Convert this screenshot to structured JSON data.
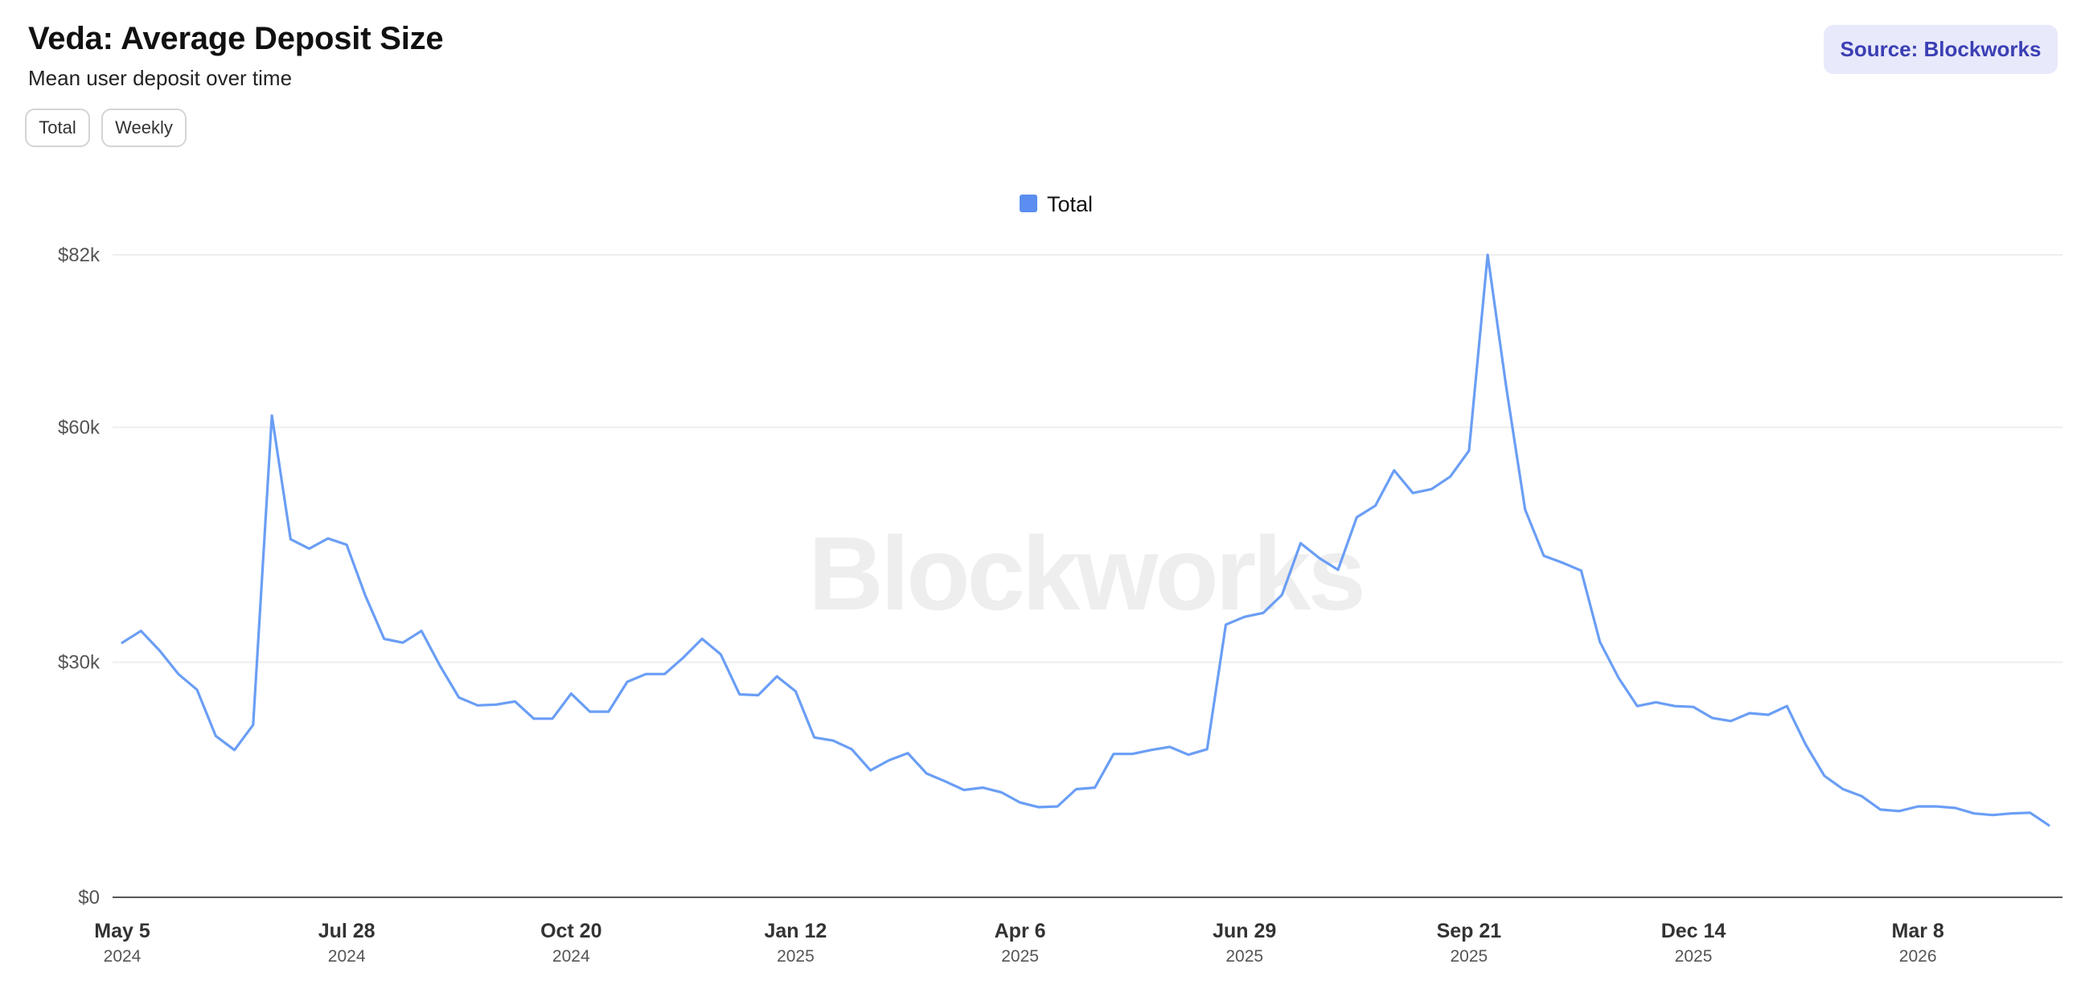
{
  "header": {
    "title": "Veda: Average Deposit Size",
    "subtitle": "Mean user deposit over time",
    "source_label": "Source: Blockworks"
  },
  "toggles": {
    "total_label": "Total",
    "weekly_label": "Weekly"
  },
  "watermark": "Blockworks",
  "colors": {
    "series": "#6a9ef5",
    "legend_swatch": "#5b8ef0",
    "source_badge_bg": "#e8e9fb",
    "source_badge_text": "#3b3fb3",
    "grid": "#eeeeee"
  },
  "chart_data": {
    "type": "line",
    "title": "Veda: Average Deposit Size",
    "subtitle": "Mean user deposit over time",
    "legend": {
      "position": "top-center",
      "entries": [
        "Total"
      ]
    },
    "grid": true,
    "ylim": [
      0,
      82000
    ],
    "y_ticks": [
      {
        "value": 0,
        "label": "$0"
      },
      {
        "value": 30000,
        "label": "$30k"
      },
      {
        "value": 60000,
        "label": "$60k"
      },
      {
        "value": 82000,
        "label": "$82k"
      }
    ],
    "x_range": [
      "2024-05-05",
      "2026-04-26"
    ],
    "x_ticks": [
      {
        "date": "2024-05-05",
        "label": "May 5",
        "year": "2024"
      },
      {
        "date": "2024-07-28",
        "label": "Jul 28",
        "year": "2024"
      },
      {
        "date": "2024-10-20",
        "label": "Oct 20",
        "year": "2024"
      },
      {
        "date": "2025-01-12",
        "label": "Jan 12",
        "year": "2025"
      },
      {
        "date": "2025-04-06",
        "label": "Apr 6",
        "year": "2025"
      },
      {
        "date": "2025-06-29",
        "label": "Jun 29",
        "year": "2025"
      },
      {
        "date": "2025-09-21",
        "label": "Sep 21",
        "year": "2025"
      },
      {
        "date": "2025-12-14",
        "label": "Dec 14",
        "year": "2025"
      },
      {
        "date": "2026-03-08",
        "label": "Mar 8",
        "year": "2026"
      }
    ],
    "x": [
      "2024-05-05",
      "2024-05-12",
      "2024-05-19",
      "2024-05-26",
      "2024-06-02",
      "2024-06-09",
      "2024-06-16",
      "2024-06-23",
      "2024-06-30",
      "2024-07-07",
      "2024-07-14",
      "2024-07-21",
      "2024-07-28",
      "2024-08-04",
      "2024-08-11",
      "2024-08-18",
      "2024-08-25",
      "2024-09-01",
      "2024-09-08",
      "2024-09-15",
      "2024-09-22",
      "2024-09-29",
      "2024-10-06",
      "2024-10-13",
      "2024-10-20",
      "2024-10-27",
      "2024-11-03",
      "2024-11-10",
      "2024-11-17",
      "2024-11-24",
      "2024-12-01",
      "2024-12-08",
      "2024-12-15",
      "2024-12-22",
      "2024-12-29",
      "2025-01-05",
      "2025-01-12",
      "2025-01-19",
      "2025-01-26",
      "2025-02-02",
      "2025-02-09",
      "2025-02-16",
      "2025-02-23",
      "2025-03-02",
      "2025-03-09",
      "2025-03-16",
      "2025-03-23",
      "2025-03-30",
      "2025-04-06",
      "2025-04-13",
      "2025-04-20",
      "2025-04-27",
      "2025-05-04",
      "2025-05-11",
      "2025-05-18",
      "2025-05-25",
      "2025-06-01",
      "2025-06-08",
      "2025-06-15",
      "2025-06-22",
      "2025-06-29",
      "2025-07-06",
      "2025-07-13",
      "2025-07-20",
      "2025-07-27",
      "2025-08-03",
      "2025-08-10",
      "2025-08-17",
      "2025-08-24",
      "2025-08-31",
      "2025-09-07",
      "2025-09-14",
      "2025-09-21",
      "2025-09-28",
      "2025-10-05",
      "2025-10-12",
      "2025-10-19",
      "2025-10-26",
      "2025-11-02",
      "2025-11-09",
      "2025-11-16",
      "2025-11-23",
      "2025-11-30",
      "2025-12-07",
      "2025-12-14",
      "2025-12-21",
      "2025-12-28",
      "2026-01-04",
      "2026-01-11",
      "2026-01-18",
      "2026-01-25",
      "2026-02-01",
      "2026-02-08",
      "2026-02-15",
      "2026-02-22",
      "2026-03-01",
      "2026-03-08",
      "2026-03-15",
      "2026-03-22",
      "2026-03-29",
      "2026-04-05",
      "2026-04-12",
      "2026-04-19",
      "2026-04-26"
    ],
    "series": [
      {
        "name": "Total",
        "color": "#6a9ef5",
        "values": [
          32500,
          34000,
          31500,
          28500,
          26500,
          20600,
          18800,
          22000,
          61500,
          45700,
          44500,
          45800,
          45000,
          38500,
          33000,
          32500,
          34000,
          29500,
          25500,
          24500,
          24600,
          25000,
          22800,
          22800,
          26000,
          23700,
          23700,
          27500,
          28500,
          28500,
          30600,
          33000,
          31000,
          25900,
          25800,
          28200,
          26300,
          20400,
          20000,
          18900,
          16200,
          17500,
          18400,
          15800,
          14800,
          13700,
          14000,
          13400,
          12100,
          11500,
          11600,
          13800,
          14000,
          18300,
          18300,
          18800,
          19200,
          18200,
          18900,
          34800,
          35800,
          36300,
          38600,
          45200,
          43300,
          41800,
          48500,
          50000,
          54500,
          51600,
          52100,
          53700,
          57000,
          82000,
          65000,
          49500,
          43600,
          42700,
          41700,
          32600,
          28000,
          24400,
          24900,
          24400,
          24300,
          22900,
          22500,
          23500,
          23300,
          24400,
          19500,
          15500,
          13800,
          12900,
          11200,
          11000,
          11600,
          11600,
          11400,
          10700,
          10500,
          10700,
          10800,
          9200
        ]
      }
    ]
  }
}
